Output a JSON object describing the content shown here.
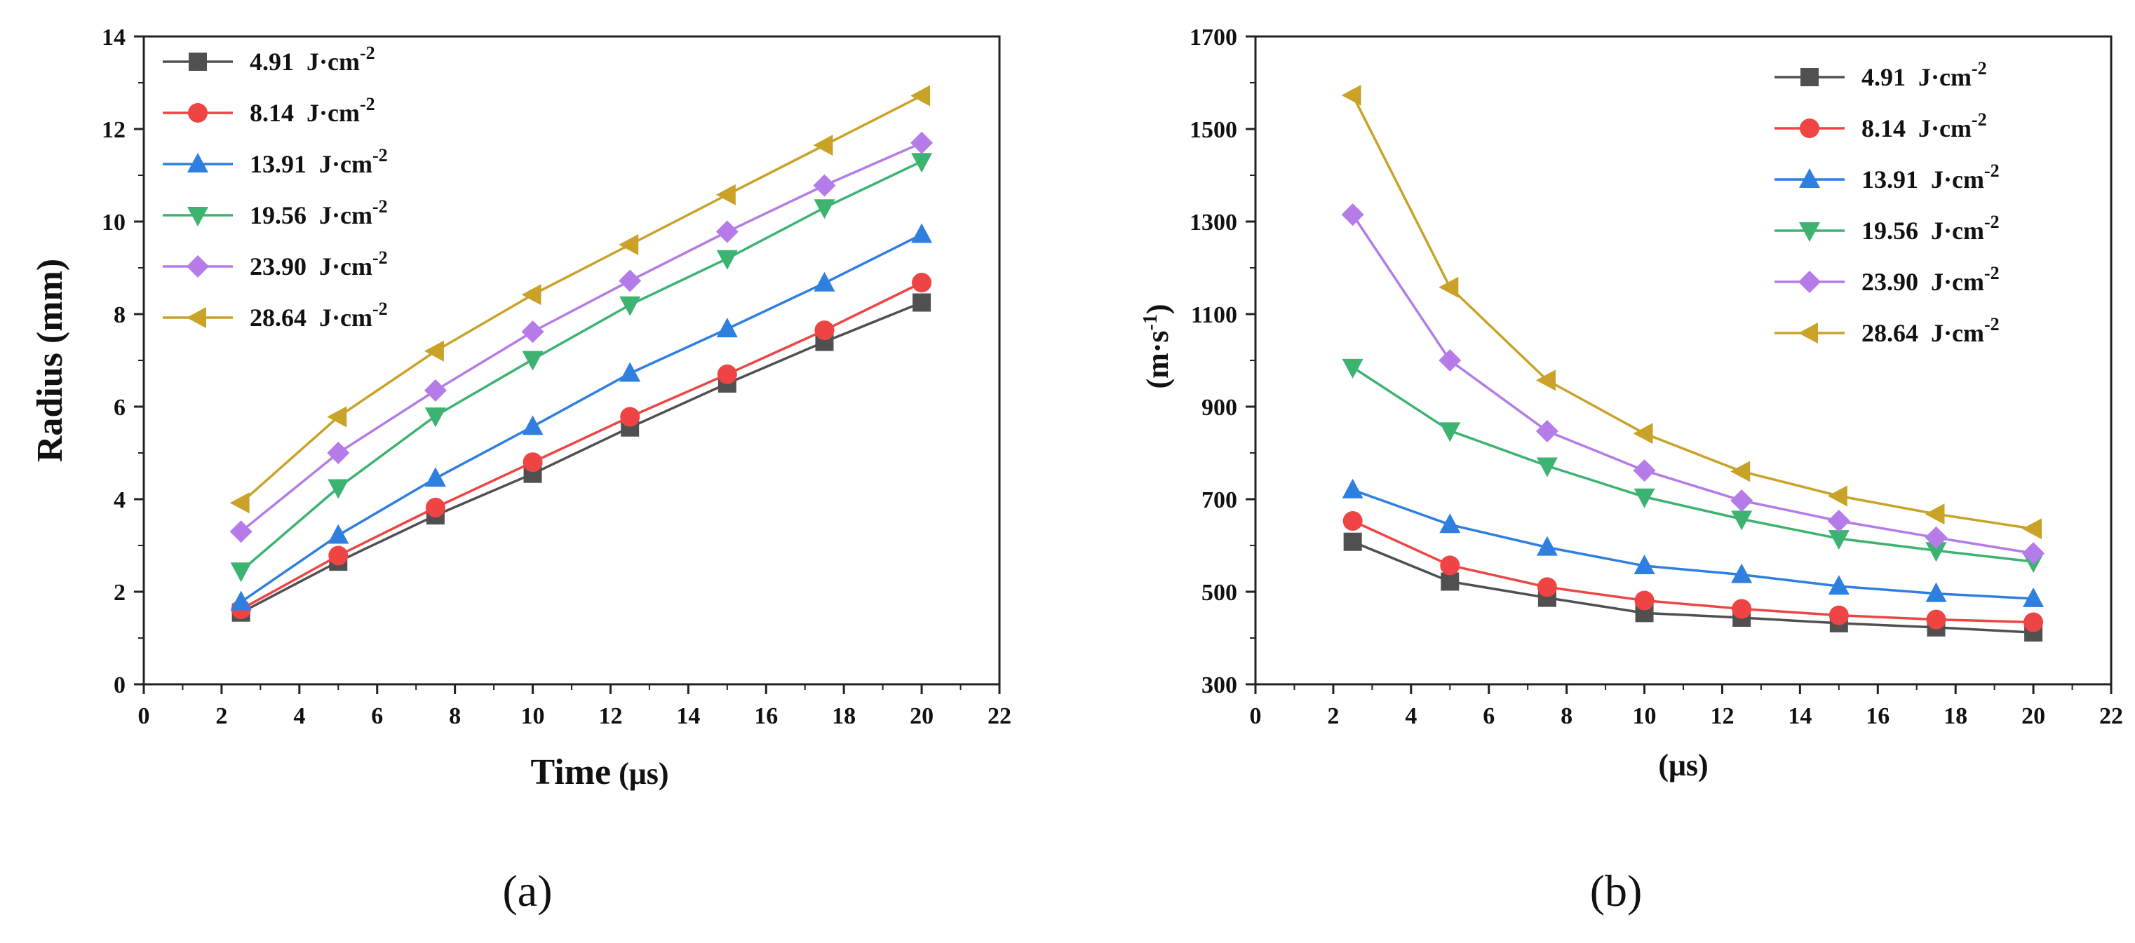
{
  "chart_data": [
    {
      "type": "line",
      "panel_label": "(a)",
      "title": "",
      "xlabel": "Time",
      "xlabel_unit": "(μs)",
      "ylabel": "Radius (mm)",
      "xlim": [
        0,
        22
      ],
      "ylim": [
        0,
        14
      ],
      "xticks": [
        0,
        2,
        4,
        6,
        8,
        10,
        12,
        14,
        16,
        18,
        20,
        22
      ],
      "yticks": [
        0,
        2,
        4,
        6,
        8,
        10,
        12,
        14
      ],
      "legend_position": "top-left",
      "x": [
        2.5,
        5,
        7.5,
        10,
        12.5,
        15,
        17.5,
        20
      ],
      "series": [
        {
          "name": "4.91",
          "unit": "J·cm",
          "exp": "-2",
          "color": "#505050",
          "marker": "square",
          "values": [
            1.55,
            2.65,
            3.65,
            4.55,
            5.55,
            6.5,
            7.4,
            8.25
          ]
        },
        {
          "name": "8.14",
          "unit": "J·cm",
          "exp": "-2",
          "color": "#ef4444",
          "marker": "circle",
          "values": [
            1.62,
            2.78,
            3.82,
            4.8,
            5.78,
            6.7,
            7.65,
            8.68
          ]
        },
        {
          "name": "13.91",
          "unit": "J·cm",
          "exp": "-2",
          "color": "#2f7fe0",
          "marker": "triangle-up",
          "values": [
            1.78,
            3.22,
            4.45,
            5.57,
            6.72,
            7.68,
            8.67,
            9.72
          ]
        },
        {
          "name": "19.56",
          "unit": "J·cm",
          "exp": "-2",
          "color": "#3cb371",
          "marker": "triangle-down",
          "values": [
            2.45,
            4.25,
            5.8,
            7.02,
            8.2,
            9.2,
            10.3,
            11.3
          ]
        },
        {
          "name": "23.90",
          "unit": "J·cm",
          "exp": "-2",
          "color": "#b57be8",
          "marker": "diamond",
          "values": [
            3.3,
            5.0,
            6.35,
            7.62,
            8.72,
            9.78,
            10.78,
            11.7
          ]
        },
        {
          "name": "28.64",
          "unit": "J·cm",
          "exp": "-2",
          "color": "#c9a227",
          "marker": "triangle-left",
          "values": [
            3.92,
            5.78,
            7.2,
            8.42,
            9.5,
            10.58,
            11.65,
            12.72
          ]
        }
      ]
    },
    {
      "type": "line",
      "panel_label": "(b)",
      "title": "",
      "xlabel": "(μs)",
      "ylabel": "(m·s",
      "ylabel_exp": "-1",
      "ylabel_close": ")",
      "xlim": [
        0,
        22
      ],
      "ylim": [
        300,
        1700
      ],
      "xticks": [
        0,
        2,
        4,
        6,
        8,
        10,
        12,
        14,
        16,
        18,
        20,
        22
      ],
      "yticks": [
        300,
        500,
        700,
        900,
        1100,
        1300,
        1500,
        1700
      ],
      "legend_position": "top-right",
      "x": [
        2.5,
        5,
        7.5,
        10,
        12.5,
        15,
        17.5,
        20
      ],
      "series": [
        {
          "name": "4.91",
          "unit": "J·cm",
          "exp": "-2",
          "color": "#505050",
          "marker": "square",
          "values": [
            608,
            522,
            487,
            454,
            444,
            432,
            423,
            412
          ]
        },
        {
          "name": "8.14",
          "unit": "J·cm",
          "exp": "-2",
          "color": "#ef4444",
          "marker": "circle",
          "values": [
            653,
            557,
            510,
            481,
            463,
            449,
            440,
            434
          ]
        },
        {
          "name": "13.91",
          "unit": "J·cm",
          "exp": "-2",
          "color": "#2f7fe0",
          "marker": "triangle-up",
          "values": [
            720,
            645,
            596,
            556,
            537,
            512,
            496,
            485
          ]
        },
        {
          "name": "19.56",
          "unit": "J·cm",
          "exp": "-2",
          "color": "#3cb371",
          "marker": "triangle-down",
          "values": [
            985,
            848,
            772,
            705,
            657,
            615,
            589,
            565
          ]
        },
        {
          "name": "23.90",
          "unit": "J·cm",
          "exp": "-2",
          "color": "#b57be8",
          "marker": "diamond",
          "values": [
            1315,
            1000,
            847,
            762,
            697,
            653,
            617,
            583
          ]
        },
        {
          "name": "28.64",
          "unit": "J·cm",
          "exp": "-2",
          "color": "#c9a227",
          "marker": "triangle-left",
          "values": [
            1573,
            1158,
            957,
            842,
            760,
            707,
            668,
            636
          ]
        }
      ]
    }
  ]
}
